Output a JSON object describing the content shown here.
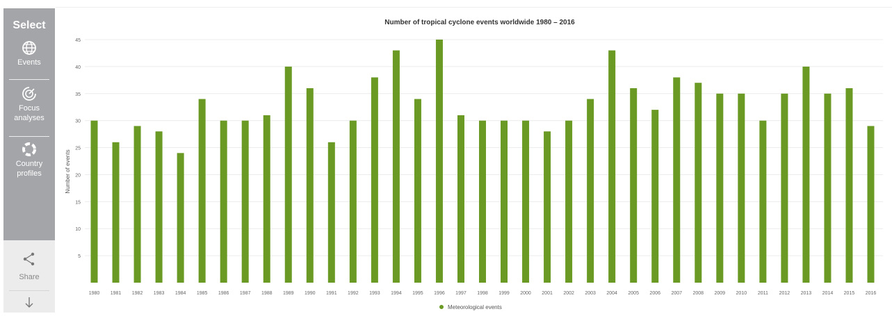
{
  "sidebar": {
    "select_label": "Select",
    "items": [
      {
        "label": "Events",
        "icon": "globe-icon"
      },
      {
        "label": "Focus analyses",
        "icon": "focus-icon"
      },
      {
        "label": "Country profiles",
        "icon": "country-icon"
      }
    ],
    "share_label": "Share",
    "download_icon": "download-icon"
  },
  "chart_data": {
    "type": "bar",
    "title": "Number of tropical cyclone events worldwide 1980 – 2016",
    "ylabel": "Number of events",
    "xlabel": "",
    "ylim": [
      0,
      45
    ],
    "yticks": [
      5,
      10,
      15,
      20,
      25,
      30,
      35,
      40,
      45
    ],
    "grid": true,
    "legend_position": "bottom-center",
    "categories": [
      "1980",
      "1981",
      "1982",
      "1983",
      "1984",
      "1985",
      "1986",
      "1987",
      "1988",
      "1989",
      "1990",
      "1991",
      "1992",
      "1993",
      "1994",
      "1995",
      "1996",
      "1997",
      "1998",
      "1999",
      "2000",
      "2001",
      "2002",
      "2003",
      "2004",
      "2005",
      "2006",
      "2007",
      "2008",
      "2009",
      "2010",
      "2011",
      "2012",
      "2013",
      "2014",
      "2015",
      "2016"
    ],
    "series": [
      {
        "name": "Meteorological events",
        "color": "#6a9a23",
        "values": [
          30,
          26,
          29,
          28,
          24,
          34,
          30,
          30,
          31,
          40,
          36,
          26,
          30,
          38,
          43,
          34,
          45,
          31,
          30,
          30,
          30,
          28,
          30,
          34,
          43,
          36,
          32,
          38,
          37,
          35,
          35,
          30,
          35,
          40,
          35,
          36,
          29
        ]
      }
    ]
  }
}
